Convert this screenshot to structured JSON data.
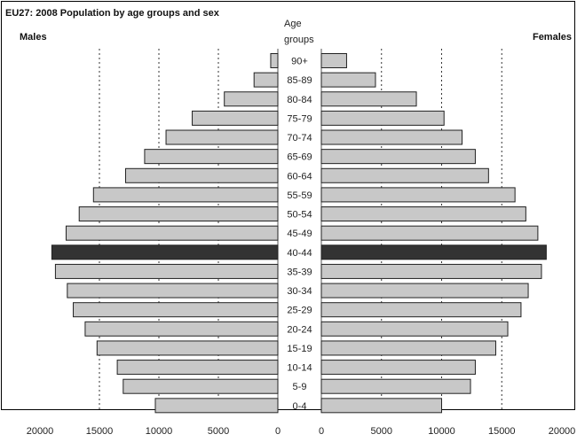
{
  "chart_data": {
    "type": "bar",
    "title": "EU27: 2008 Population by age groups and sex",
    "left_label": "Males",
    "right_label": "Females",
    "category_header": [
      "Age",
      "groups"
    ],
    "categories": [
      "90+",
      "85-89",
      "80-84",
      "75-79",
      "70-74",
      "65-69",
      "60-64",
      "55-59",
      "50-54",
      "45-49",
      "40-44",
      "35-39",
      "30-34",
      "25-29",
      "20-24",
      "15-19",
      "10-14",
      "5-9",
      "0-4"
    ],
    "series": [
      {
        "name": "Males",
        "values": [
          600,
          2000,
          4500,
          7200,
          9400,
          11200,
          12800,
          15500,
          16700,
          17800,
          19000,
          18700,
          17700,
          17200,
          16200,
          15200,
          13500,
          13000,
          10300
        ]
      },
      {
        "name": "Females",
        "values": [
          2100,
          4500,
          7900,
          10200,
          11700,
          12800,
          13900,
          16100,
          17000,
          18000,
          18700,
          18300,
          17200,
          16600,
          15500,
          14500,
          12800,
          12400,
          10000
        ]
      }
    ],
    "highlight_category": "40-44",
    "xlim": [
      0,
      20000
    ],
    "x_ticks": [
      20000,
      15000,
      10000,
      5000,
      0
    ],
    "grid": true,
    "colors": {
      "bar": "#c8c8c8",
      "highlight": "#333333",
      "edge": "#222222"
    }
  }
}
